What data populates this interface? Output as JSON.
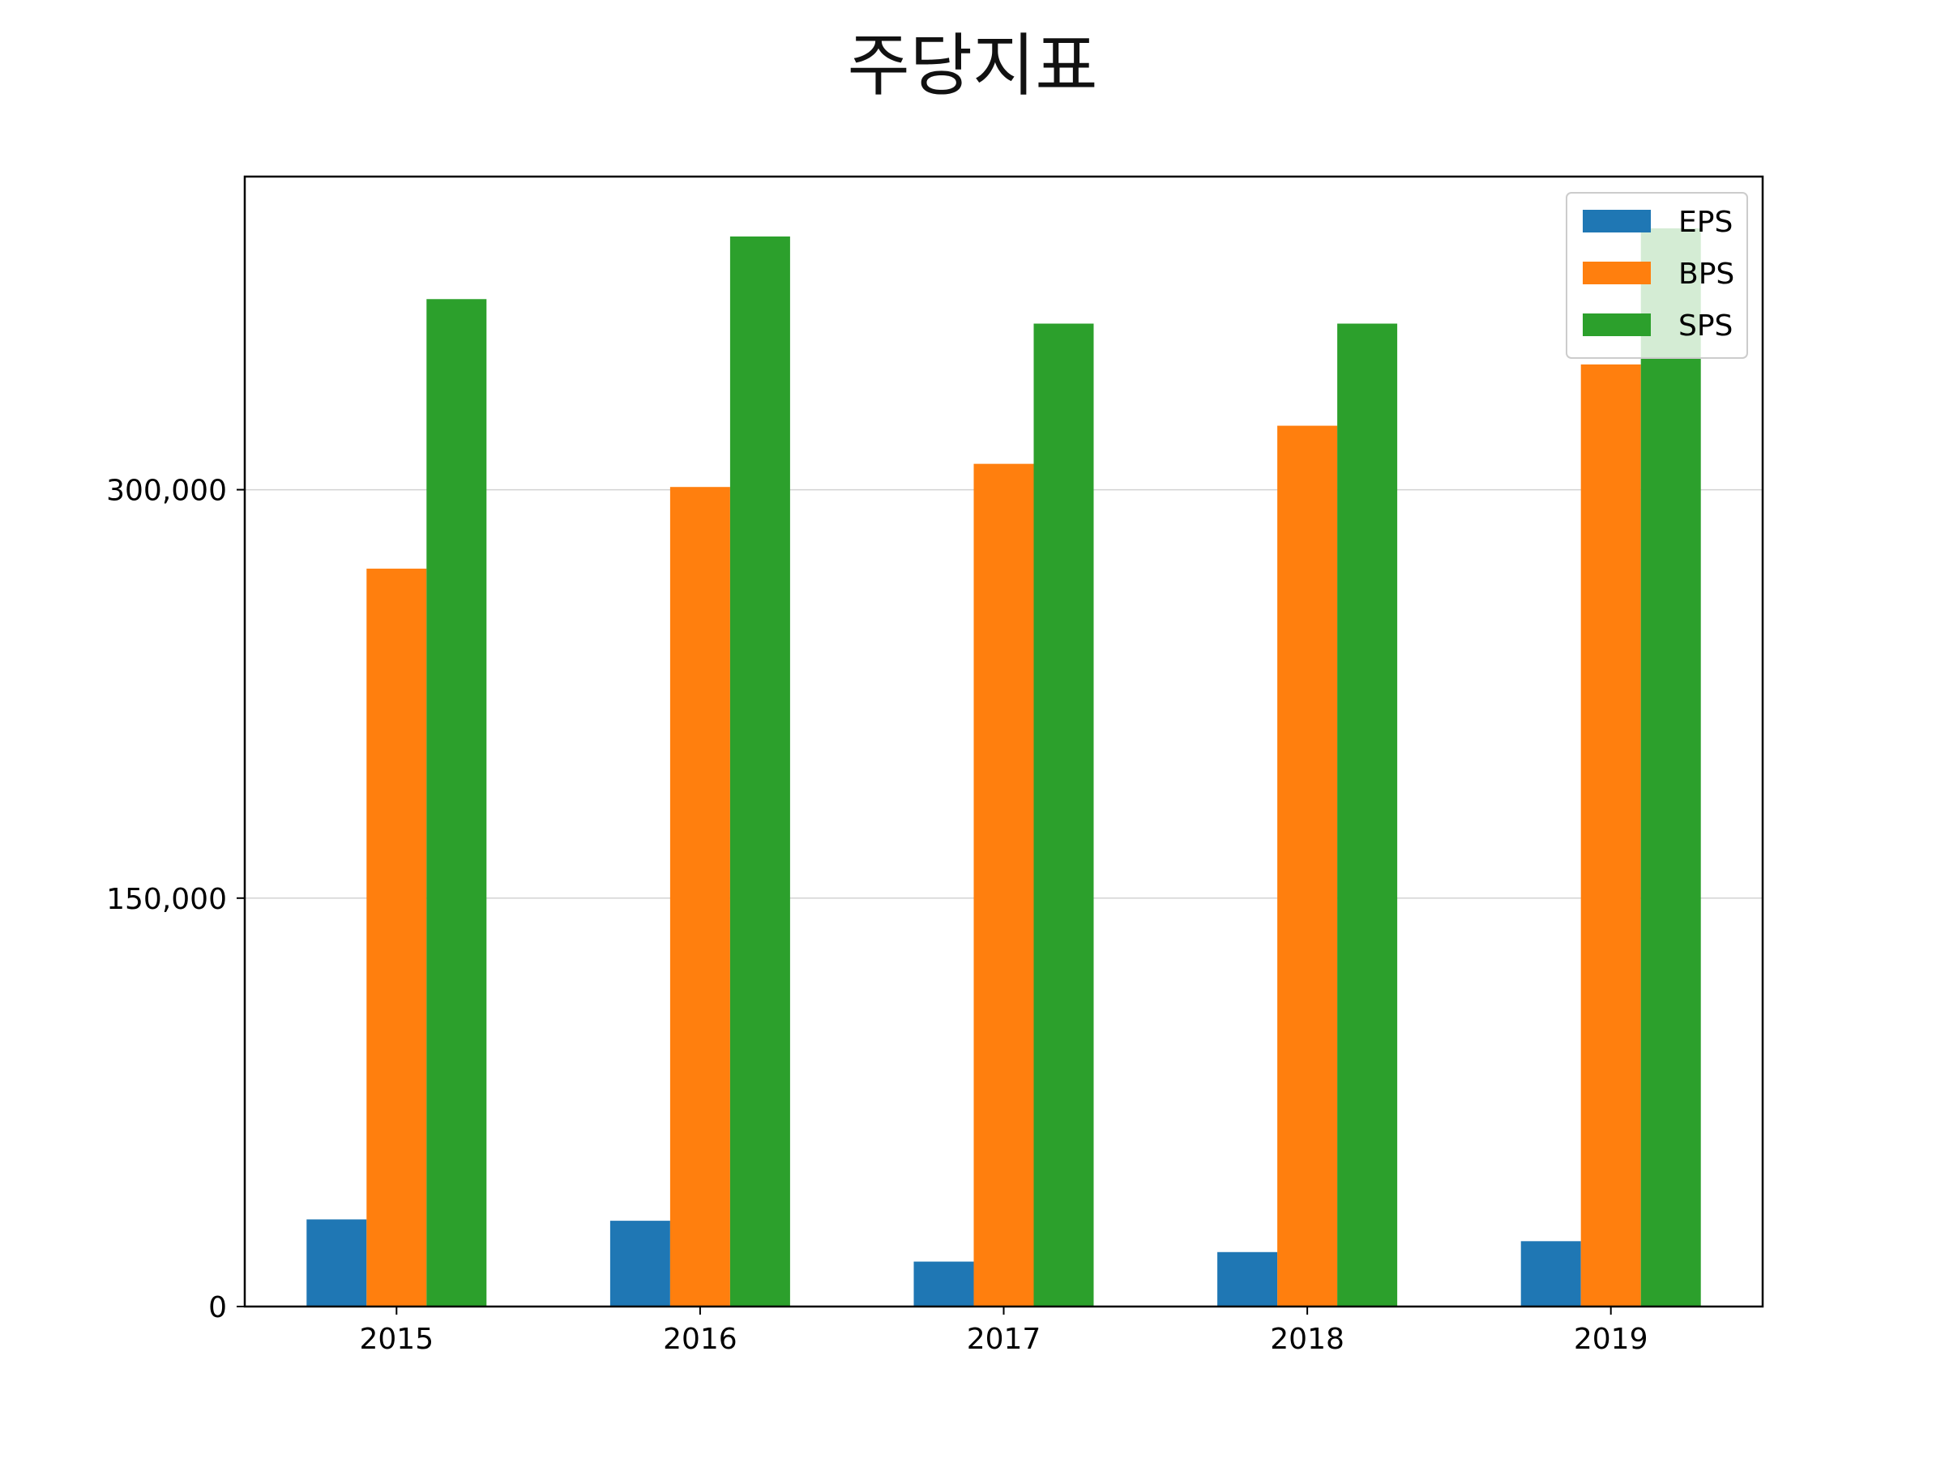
{
  "chart_data": {
    "type": "bar",
    "title": "주당지표",
    "xlabel": "",
    "ylabel": "",
    "categories": [
      "2015",
      "2016",
      "2017",
      "2018",
      "2019"
    ],
    "series": [
      {
        "name": "EPS",
        "color": "#1f77b4",
        "values": [
          32000,
          31500,
          16500,
          20000,
          24000
        ]
      },
      {
        "name": "BPS",
        "color": "#ff7f0e",
        "values": [
          271000,
          301000,
          309500,
          323500,
          346000
        ]
      },
      {
        "name": "SPS",
        "color": "#2ca02c",
        "values": [
          370000,
          393000,
          361000,
          361000,
          396000
        ]
      }
    ],
    "ylim": [
      0,
      415000
    ],
    "yticks": [
      0,
      150000,
      300000
    ],
    "ytick_labels": [
      "0",
      "150,000",
      "300,000"
    ],
    "grid": "horizontal",
    "legend_position": "top-right"
  }
}
